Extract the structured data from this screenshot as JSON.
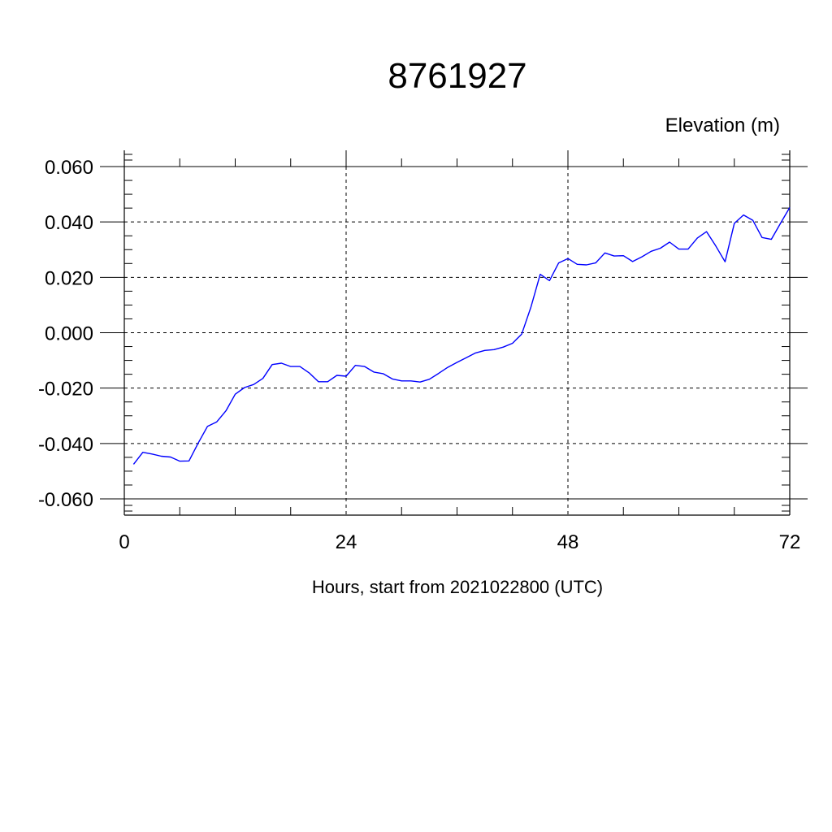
{
  "chart_data": {
    "type": "line",
    "title": "8761927",
    "ylabel": "Elevation (m)",
    "xlabel": "Hours, start from 2021022800 (UTC)",
    "xlim": [
      0,
      72
    ],
    "ylim": [
      -0.06,
      0.06
    ],
    "x_ticks": [
      0,
      24,
      48,
      72
    ],
    "x_tick_labels": [
      "0",
      "24",
      "48",
      "72"
    ],
    "y_ticks": [
      0.06,
      0.04,
      0.02,
      0.0,
      -0.02,
      -0.04,
      -0.06
    ],
    "y_tick_labels": [
      "0.060",
      "0.040",
      "0.020",
      "0.000",
      "-0.020",
      "-0.040",
      "-0.060"
    ],
    "grid": true,
    "colors": {
      "line": "#0000ff",
      "axes": "#000000",
      "grid": "#000000"
    },
    "series": [
      {
        "x": [
          1,
          2,
          3,
          4,
          5,
          6,
          7,
          8,
          9,
          10,
          11,
          12,
          13,
          14,
          15,
          16,
          17,
          18,
          19,
          20,
          21,
          22,
          23,
          24,
          25,
          26,
          27,
          28,
          29,
          30,
          31,
          32,
          33,
          34,
          35,
          36,
          37,
          38,
          39,
          40,
          41,
          42,
          43,
          44,
          45,
          46,
          47,
          48,
          49,
          50,
          51,
          52,
          53,
          54,
          55,
          56,
          57,
          58,
          59,
          60,
          61,
          62,
          63,
          64,
          65,
          66,
          67,
          68,
          69,
          70,
          71,
          72
        ],
        "values": [
          -0.0475,
          -0.0432,
          -0.0438,
          -0.0446,
          -0.0449,
          -0.0464,
          -0.0463,
          -0.0398,
          -0.0338,
          -0.0322,
          -0.0282,
          -0.0222,
          -0.0198,
          -0.0187,
          -0.0165,
          -0.0115,
          -0.011,
          -0.0122,
          -0.0122,
          -0.0145,
          -0.0177,
          -0.0177,
          -0.0154,
          -0.0157,
          -0.0118,
          -0.0122,
          -0.0142,
          -0.0148,
          -0.0167,
          -0.0174,
          -0.0174,
          -0.0178,
          -0.0168,
          -0.0147,
          -0.0125,
          -0.0107,
          -0.009,
          -0.0073,
          -0.0064,
          -0.0061,
          -0.0052,
          -0.0038,
          -0.0005,
          0.0093,
          0.0211,
          0.0188,
          0.0252,
          0.0268,
          0.0247,
          0.0245,
          0.0252,
          0.0288,
          0.0277,
          0.0278,
          0.0257,
          0.0274,
          0.0294,
          0.0305,
          0.0327,
          0.0302,
          0.0302,
          0.0342,
          0.0365,
          0.0313,
          0.0256,
          0.0395,
          0.0425,
          0.0406,
          0.0344,
          0.0337,
          0.0395,
          0.0452
        ]
      }
    ]
  }
}
